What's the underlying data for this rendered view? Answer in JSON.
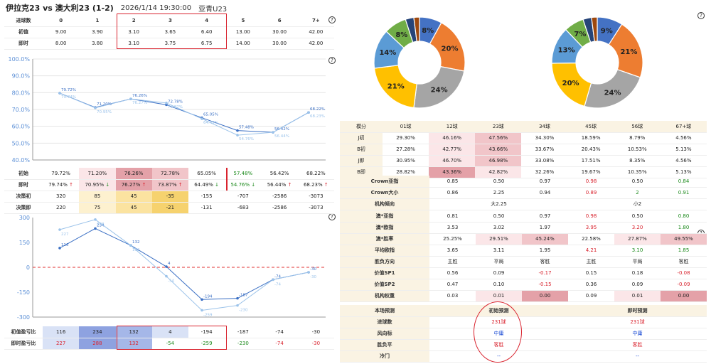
{
  "header": {
    "title": "伊拉克23 vs 澳大利23 (1-2)",
    "datetime": "2026/1/14 19:30:00",
    "league": "亚青U23"
  },
  "goals_table": {
    "columns": [
      "进球数",
      "0",
      "1",
      "2",
      "3",
      "4",
      "5",
      "6",
      "7+"
    ],
    "rows": [
      {
        "label": "初值",
        "values": [
          "9.00",
          "3.90",
          "3.10",
          "3.65",
          "6.40",
          "13.00",
          "30.00",
          "42.00"
        ]
      },
      {
        "label": "即时",
        "values": [
          "8.00",
          "3.80",
          "3.10",
          "3.75",
          "6.75",
          "14.00",
          "30.00",
          "42.00"
        ]
      }
    ]
  },
  "help_glyph": "?",
  "pct_chart": {
    "type": "line",
    "categories": [
      "0",
      "1",
      "2",
      "3",
      "4",
      "5",
      "6",
      "7+"
    ],
    "ylim": [
      40,
      100
    ],
    "yticks": [
      "100.0%",
      "90.0%",
      "80.0%",
      "70.0%",
      "60.0%",
      "50.0%",
      "40.0%"
    ],
    "ytick_values": [
      100,
      90,
      80,
      70,
      60,
      50,
      40
    ],
    "series": [
      {
        "name": "初始",
        "values": [
          79.72,
          71.2,
          76.26,
          72.78,
          65.05,
          57.48,
          56.42,
          68.22
        ],
        "labels": [
          "79.72%",
          "71.20%",
          "76.26%",
          "72.78%",
          "65.05%",
          "57.48%",
          "56.42%",
          "68.22%"
        ]
      },
      {
        "name": "即时",
        "values": [
          79.74,
          70.95,
          76.27,
          73.87,
          64.49,
          54.76,
          56.44,
          68.23
        ],
        "labels": [
          "79.74%",
          "70.95%",
          "76.27%",
          "73.87%",
          "64.49%",
          "54.76%",
          "56.44%",
          "68.23%"
        ]
      }
    ]
  },
  "rate_table": {
    "rows": [
      {
        "label": "初始",
        "cells": [
          {
            "v": "79.72%",
            "a": ""
          },
          {
            "v": "71.20%",
            "a": ""
          },
          {
            "v": "76.26%",
            "a": ""
          },
          {
            "v": "72.78%",
            "a": ""
          },
          {
            "v": "65.05%",
            "a": ""
          },
          {
            "v": "57.48%",
            "a": ""
          },
          {
            "v": "56.42%",
            "a": ""
          },
          {
            "v": "68.22%",
            "a": ""
          }
        ]
      },
      {
        "label": "即时",
        "cells": [
          {
            "v": "79.74%",
            "a": "↑"
          },
          {
            "v": "70.95%",
            "a": "↓"
          },
          {
            "v": "76.27%",
            "a": "↑"
          },
          {
            "v": "73.87%",
            "a": "↑"
          },
          {
            "v": "64.49%",
            "a": "↓"
          },
          {
            "v": "54.76%",
            "a": "↓"
          },
          {
            "v": "56.44%",
            "a": "↑"
          },
          {
            "v": "68.23%",
            "a": "↑"
          }
        ]
      },
      {
        "label": "决策初",
        "cells": [
          {
            "v": "320"
          },
          {
            "v": "85"
          },
          {
            "v": "45"
          },
          {
            "v": "-35"
          },
          {
            "v": "-155"
          },
          {
            "v": "-707"
          },
          {
            "v": "-2586"
          },
          {
            "v": "-3073"
          }
        ]
      },
      {
        "label": "决策即",
        "cells": [
          {
            "v": "220"
          },
          {
            "v": "75"
          },
          {
            "v": "45"
          },
          {
            "v": "-21"
          },
          {
            "v": "-131"
          },
          {
            "v": "-683"
          },
          {
            "v": "-2586"
          },
          {
            "v": "-3073"
          }
        ]
      }
    ]
  },
  "pl_chart": {
    "type": "line",
    "categories": [
      "0",
      "1",
      "2",
      "3",
      "4",
      "5",
      "6",
      "7+"
    ],
    "ylim": [
      -300,
      300
    ],
    "yticks": [
      "300",
      "150",
      "0",
      "-150",
      "-300"
    ],
    "ytick_values": [
      300,
      150,
      0,
      -150,
      -300
    ],
    "series": [
      {
        "name": "初值盈亏比",
        "values": [
          116,
          234,
          132,
          4,
          -194,
          -187,
          -74,
          -30
        ]
      },
      {
        "name": "即时盈亏比",
        "values": [
          227,
          288,
          132,
          -54,
          -259,
          -230,
          -74,
          -30
        ]
      }
    ]
  },
  "pl_table": {
    "rows": [
      {
        "label": "初值盈亏比",
        "values": [
          "116",
          "234",
          "132",
          "4",
          "-194",
          "-187",
          "-74",
          "-30"
        ]
      },
      {
        "label": "即时盈亏比",
        "values": [
          "227",
          "288",
          "132",
          "-54",
          "-259",
          "-230",
          "-74",
          "-30"
        ]
      }
    ]
  },
  "pie_charts": [
    {
      "type": "pie",
      "slices": [
        {
          "label": "8%",
          "value": 8,
          "color": "#4472c4"
        },
        {
          "label": "20%",
          "value": 20,
          "color": "#ed7d31"
        },
        {
          "label": "24%",
          "value": 24,
          "color": "#a5a5a5"
        },
        {
          "label": "21%",
          "value": 21,
          "color": "#ffc000"
        },
        {
          "label": "14%",
          "value": 14,
          "color": "#5b9bd5"
        },
        {
          "label": "8%",
          "value": 8,
          "color": "#70ad47"
        },
        {
          "label": "",
          "value": 3,
          "color": "#264478"
        },
        {
          "label": "",
          "value": 2,
          "color": "#9e480e"
        }
      ]
    },
    {
      "type": "pie",
      "slices": [
        {
          "label": "9%",
          "value": 9,
          "color": "#4472c4"
        },
        {
          "label": "21%",
          "value": 21,
          "color": "#ed7d31"
        },
        {
          "label": "24%",
          "value": 24,
          "color": "#a5a5a5"
        },
        {
          "label": "20%",
          "value": 20,
          "color": "#ffc000"
        },
        {
          "label": "13%",
          "value": 13,
          "color": "#5b9bd5"
        },
        {
          "label": "7%",
          "value": 7,
          "color": "#70ad47"
        },
        {
          "label": "",
          "value": 3,
          "color": "#264478"
        },
        {
          "label": "",
          "value": 2,
          "color": "#9e480e"
        }
      ]
    }
  ],
  "goal_dist": {
    "columns": [
      "模分",
      "01球",
      "12球",
      "23球",
      "34球",
      "45球",
      "56球",
      "67+球"
    ],
    "rows": [
      {
        "label": "J初",
        "values": [
          "29.30%",
          "46.16%",
          "47.56%",
          "34.30%",
          "18.59%",
          "8.79%",
          "4.56%"
        ]
      },
      {
        "label": "B初",
        "values": [
          "27.28%",
          "42.77%",
          "43.66%",
          "33.67%",
          "20.43%",
          "10.53%",
          "5.13%"
        ]
      },
      {
        "label": "J即",
        "values": [
          "30.95%",
          "46.70%",
          "46.98%",
          "33.08%",
          "17.51%",
          "8.35%",
          "4.56%"
        ]
      },
      {
        "label": "B即",
        "values": [
          "28.82%",
          "43.36%",
          "42.82%",
          "32.26%",
          "19.67%",
          "10.35%",
          "5.13%"
        ]
      }
    ]
  },
  "crown": {
    "rows": [
      {
        "label": "Crown亚指",
        "values": [
          "0.85",
          "0.50",
          "0.97",
          "0.98",
          "0.50",
          "0.84"
        ]
      },
      {
        "label": "Crown大小",
        "values": [
          "0.86",
          "2.25",
          "0.94",
          "0.89",
          "2",
          "0.91"
        ]
      }
    ],
    "tendency_label": "机构倾向",
    "tendency_left": "大2.25",
    "tendency_right": "小2"
  },
  "macao": {
    "rows": [
      {
        "label": "澳*亚指",
        "values": [
          "0.81",
          "0.50",
          "0.97",
          "0.98",
          "0.50",
          "0.80"
        ]
      },
      {
        "label": "澳*欧指",
        "values": [
          "3.53",
          "3.02",
          "1.97",
          "3.95",
          "3.20",
          "1.80"
        ]
      },
      {
        "label": "澳*胜率",
        "values": [
          "25.25%",
          "29.51%",
          "45.24%",
          "22.58%",
          "27.87%",
          "49.55%"
        ]
      },
      {
        "label": "平均欧指",
        "values": [
          "3.65",
          "3.11",
          "1.95",
          "4.21",
          "3.10",
          "1.85"
        ]
      },
      {
        "label": "胜负方向",
        "values": [
          "主胜",
          "平局",
          "客胜",
          "主胜",
          "平局",
          "客胜"
        ]
      },
      {
        "label": "价值SP1",
        "values": [
          "0.56",
          "0.09",
          "-0.17",
          "0.15",
          "0.18",
          "-0.08"
        ]
      },
      {
        "label": "价值SP2",
        "values": [
          "0.47",
          "0.10",
          "-0.15",
          "0.36",
          "0.09",
          "-0.09"
        ]
      },
      {
        "label": "机构权重",
        "values": [
          "0.03",
          "0.01",
          "0.00",
          "0.09",
          "0.01",
          "0.00"
        ]
      }
    ]
  },
  "prediction": {
    "headers": [
      "本场预测",
      "初始预测",
      "即时预测"
    ],
    "rows": [
      {
        "label": "进球数",
        "initial": "231球",
        "live": "231球"
      },
      {
        "label": "风向标",
        "initial": "中庸",
        "live": "中庸"
      },
      {
        "label": "胜负平",
        "initial": "客胜",
        "live": "客胜"
      },
      {
        "label": "冷门",
        "initial": "--",
        "live": "--"
      }
    ]
  }
}
